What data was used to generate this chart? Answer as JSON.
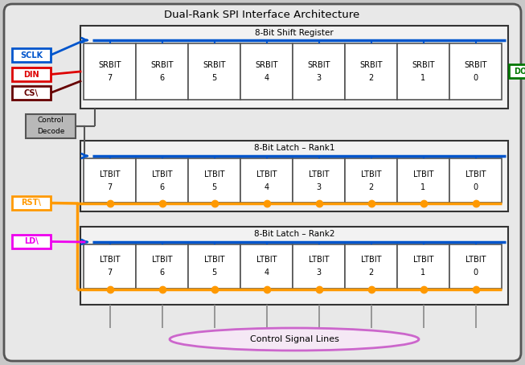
{
  "title": "Dual-Rank SPI Interface Architecture",
  "bg_outer": "#c8c8c8",
  "bg_inner": "#e8e8e8",
  "bg_block": "#f2f2f2",
  "bg_cell": "#ffffff",
  "sr_label": "8-Bit Shift Register",
  "rank1_label": "8-Bit Latch – Rank1",
  "rank2_label": "8-Bit Latch – Rank2",
  "ctrl_signal_label": "Control Signal Lines",
  "sr_bits": [
    "SRBIT\n7",
    "SRBIT\n6",
    "SRBIT\n5",
    "SRBIT\n4",
    "SRBIT\n3",
    "SRBIT\n2",
    "SRBIT\n1",
    "SRBIT\n0"
  ],
  "lt_bits": [
    "LTBIT\n7",
    "LTBIT\n6",
    "LTBIT\n5",
    "LTBIT\n4",
    "LTBIT\n3",
    "LTBIT\n2",
    "LTBIT\n1",
    "LTBIT\n0"
  ],
  "sclk_color": "#0055cc",
  "din_color": "#dd0000",
  "cs_color": "#660000",
  "dout_color": "#007700",
  "rst_color": "#ff9900",
  "ld_color": "#ee00ee",
  "blue_line": "#0055cc",
  "orange_line": "#ff9900",
  "block_edge": "#333333",
  "cell_edge": "#555555",
  "cd_bg": "#b8b8b8",
  "cd_edge": "#555555",
  "ellipse_fill": "#f5e8f5",
  "ellipse_edge": "#cc66cc",
  "outer_edge": "#555555",
  "vline_color": "#888888"
}
